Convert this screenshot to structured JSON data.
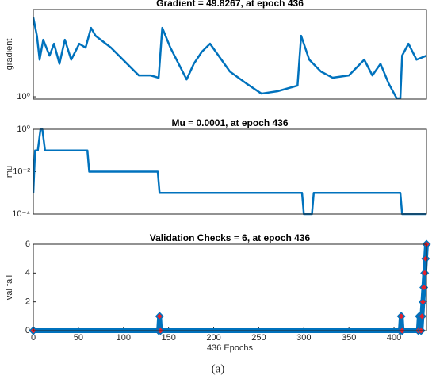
{
  "chart_data": [
    {
      "type": "line",
      "title": "Gradient = 49.8267, at epoch 436",
      "ylabel": "gradient",
      "log_y": true,
      "xlim": [
        0,
        436
      ],
      "ylim": [
        0.8,
        4000
      ],
      "yticks": [
        {
          "value": 1,
          "label": "10⁰"
        }
      ],
      "series": [
        {
          "color": "#0072bd",
          "x": [
            0,
            4,
            7,
            11,
            18,
            23,
            29,
            35,
            42,
            51,
            58,
            64,
            69,
            86,
            104,
            117,
            130,
            139,
            143,
            152,
            170,
            178,
            187,
            196,
            218,
            236,
            253,
            271,
            293,
            297,
            306,
            319,
            332,
            350,
            367,
            376,
            385,
            394,
            403,
            407,
            409,
            416,
            425,
            436
          ],
          "values": [
            1860,
            330,
            34,
            225,
            50,
            155,
            23,
            225,
            34,
            155,
            107,
            700,
            330,
            107,
            23,
            7.6,
            7.6,
            6.1,
            700,
            107,
            5.2,
            23,
            73,
            155,
            11,
            3.6,
            1.35,
            1.7,
            2.9,
            330,
            34,
            11,
            6.1,
            7.6,
            34,
            7.6,
            23,
            3.6,
            0.86,
            0.86,
            50,
            155,
            34,
            49.8
          ]
        }
      ]
    },
    {
      "type": "line",
      "title": "Mu = 0.0001, at epoch 436",
      "ylabel": "mu",
      "log_y": true,
      "xlim": [
        0,
        436
      ],
      "ylim": [
        0.0001,
        1
      ],
      "yticks": [
        {
          "value": 0.0001,
          "label": "10⁻⁴"
        },
        {
          "value": 0.01,
          "label": "10⁻²"
        },
        {
          "value": 1,
          "label": "10⁰"
        }
      ],
      "series": [
        {
          "color": "#0072bd",
          "x": [
            0,
            2,
            5,
            8,
            10,
            13,
            60,
            62,
            138,
            140,
            298,
            300,
            309,
            311,
            407,
            409,
            436
          ],
          "values": [
            0.001,
            0.1,
            0.1,
            1,
            1,
            0.1,
            0.1,
            0.01,
            0.01,
            0.001,
            0.001,
            0.0001,
            0.0001,
            0.001,
            0.001,
            0.0001,
            0.0001
          ]
        }
      ]
    },
    {
      "type": "line",
      "title": "Validation Checks = 6, at epoch 436",
      "ylabel": "val fail",
      "xlabel": "436 Epochs",
      "marker": "diamond",
      "marker_color": "#e8202a",
      "xlim": [
        0,
        436
      ],
      "ylim": [
        0,
        6
      ],
      "yticks": [
        0,
        2,
        4,
        6
      ],
      "xticks": [
        0,
        50,
        100,
        150,
        200,
        250,
        300,
        350,
        400
      ],
      "series": [
        {
          "color": "#0072bd",
          "x": [
            0,
            139,
            140,
            141,
            407,
            408,
            409,
            427,
            428,
            429,
            430,
            431,
            432,
            433,
            434,
            435,
            436
          ],
          "values": [
            0,
            0,
            1,
            0,
            0,
            1,
            0,
            0,
            1,
            1,
            0,
            1,
            2,
            3,
            4,
            5,
            6
          ]
        }
      ]
    }
  ],
  "caption": "(a)"
}
